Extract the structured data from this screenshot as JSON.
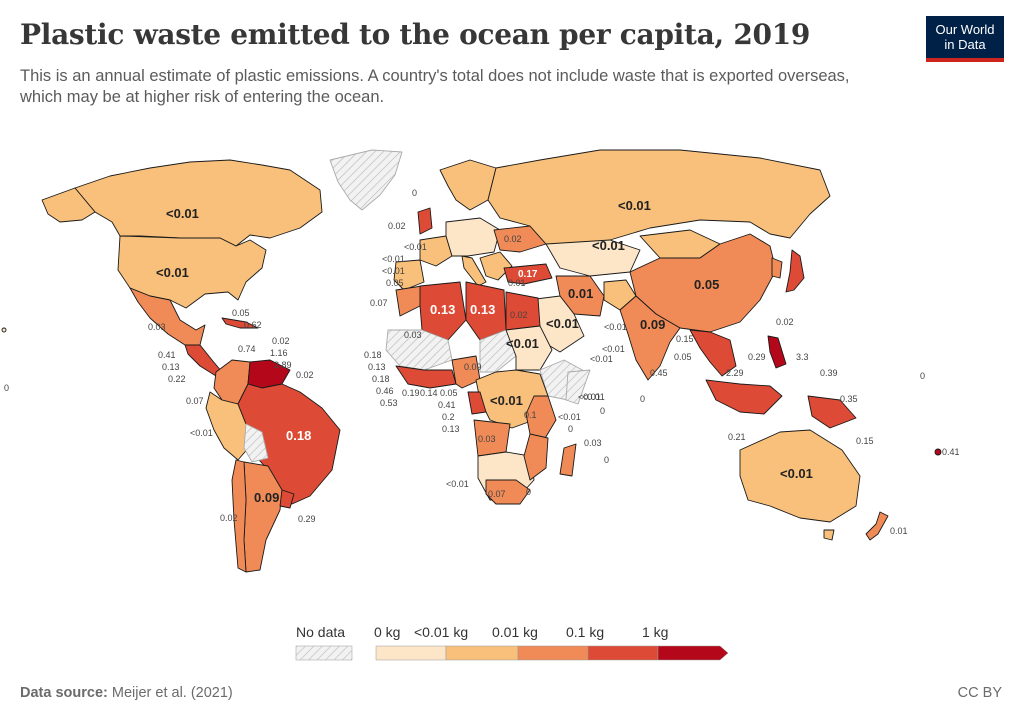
{
  "header": {
    "title": "Plastic waste emitted to the ocean per capita, 2019",
    "subtitle": "This is an annual estimate of plastic emissions. A country's total does not include waste that is exported overseas, which may be at higher risk of entering the ocean.",
    "logo_line1": "Our World",
    "logo_line2": "in Data"
  },
  "colors": {
    "bin0": "#fde6c8",
    "bin1": "#f8c07a",
    "bin2": "#f08b57",
    "bin3": "#dd4a35",
    "bin4": "#b4081a",
    "nodata_stroke": "#bbbbbb",
    "border": "#1a1a1a"
  },
  "legend": {
    "nodata_label": "No data",
    "bins": [
      "0 kg",
      "<0.01 kg",
      "0.01 kg",
      "0.1 kg",
      "1 kg"
    ]
  },
  "map": {
    "labels_large": {
      "russia": "<0.01",
      "canada": "<0.01",
      "usa": "<0.01",
      "australia": "<0.01",
      "china": "0.05",
      "brazil": "0.18",
      "algeria": "0.13",
      "libya": "0.13",
      "india": "0.09",
      "argentina": "0.09",
      "iran": "0.01",
      "mongolia": "<0.01",
      "saudi": "<0.01",
      "sudan": "<0.01",
      "drc": "<0.01",
      "turkey": "0.17"
    },
    "labels_small": [
      "0",
      "0.02",
      "<0.01",
      "<0.01",
      "<0.01",
      "0.05",
      "0.02",
      "0.01",
      "0.07",
      "0.03",
      "0.02",
      "0.18",
      "0.13",
      "0.18",
      "0.46",
      "0.53",
      "0.19",
      "0.14",
      "0.05",
      "0.41",
      "0.2",
      "0.13",
      "0.09",
      "0.03",
      "0.1",
      "<0.01",
      "<0.01",
      "0",
      "0.03",
      "0",
      "<0.01",
      "0.07",
      "0",
      "<0.01",
      "<0.01",
      "<0.01",
      "<0.01",
      "0.15",
      "0.05",
      "0.45",
      "0.29",
      "3.3",
      "0.39",
      "0.02",
      "2.29",
      "0.35",
      "0.21",
      "0.15",
      "0.41",
      "0.01",
      "0",
      "0",
      "0.05",
      "0.62",
      "0.02",
      "0.74",
      "1.16",
      "2.89",
      "0.02",
      "0.41",
      "0.13",
      "0.22",
      "0.03",
      "0.07",
      "<0.01",
      "0.02",
      "0.29",
      "0",
      "0"
    ]
  },
  "footer": {
    "source_label": "Data source:",
    "source_text": "Meijer et al. (2021)",
    "license": "CC BY"
  }
}
